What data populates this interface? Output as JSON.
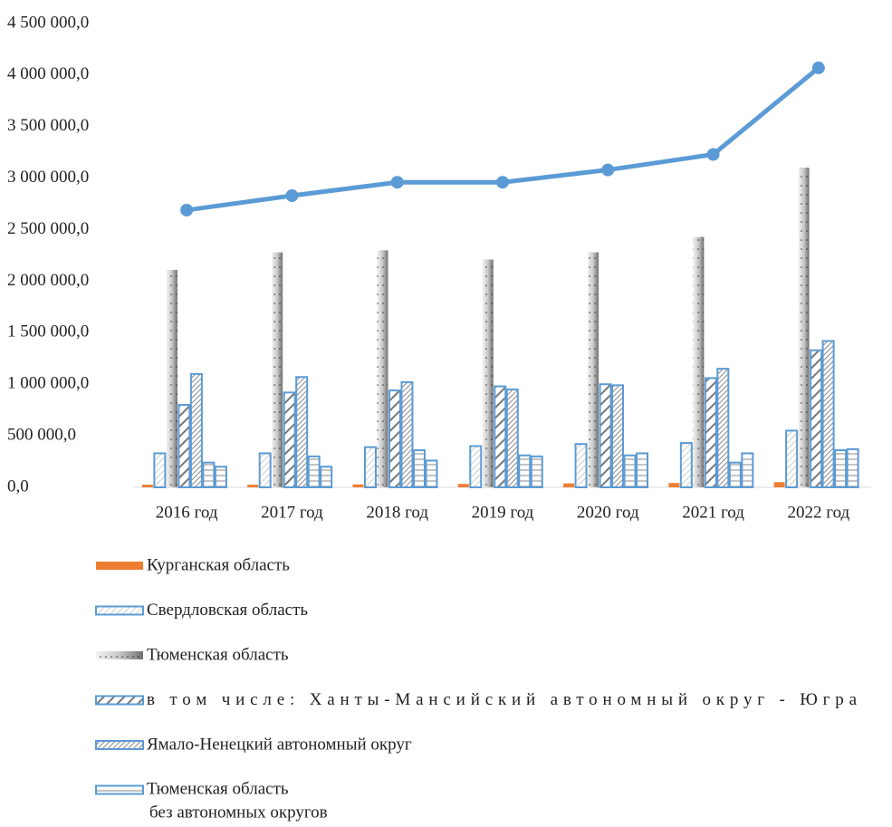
{
  "chart_data": {
    "type": "bar",
    "categories": [
      "2016 год",
      "2017 год",
      "2018 год",
      "2019 год",
      "2020 год",
      "2021 год",
      "2022 год"
    ],
    "ylim": [
      0,
      4500000
    ],
    "yticks": [
      {
        "value": 0,
        "label": "0,0"
      },
      {
        "value": 500000,
        "label": "500 000,0"
      },
      {
        "value": 1000000,
        "label": "1 000 000,0"
      },
      {
        "value": 1500000,
        "label": "1 500 000,0"
      },
      {
        "value": 2000000,
        "label": "2 000 000,0"
      },
      {
        "value": 2500000,
        "label": "2 500 000,0"
      },
      {
        "value": 3000000,
        "label": "3 000 000,0"
      },
      {
        "value": 3500000,
        "label": "3 500 000,0"
      },
      {
        "value": 4000000,
        "label": "4 000 000,0"
      },
      {
        "value": 4500000,
        "label": "4 500 000,0"
      }
    ],
    "grid": false,
    "series": [
      {
        "name": "Курганская область",
        "color": "#ed7d31",
        "pattern": "solid",
        "values": [
          25000,
          25000,
          28000,
          33000,
          38000,
          42000,
          50000
        ]
      },
      {
        "name": "Свердловская область",
        "color": "#5b9bd5",
        "pattern": "light-diagonal",
        "values": [
          330000,
          330000,
          390000,
          400000,
          420000,
          430000,
          550000
        ]
      },
      {
        "name": "Тюменская область",
        "color": "#8c8c8c",
        "pattern": "dotted-gradient",
        "values": [
          2110000,
          2280000,
          2300000,
          2210000,
          2280000,
          2430000,
          3100000
        ]
      },
      {
        "name": "в том числе:                  Ханты-Мансийский        автономный округ - Югра",
        "color": "#5b9bd5",
        "pattern": "wide-diagonal",
        "values": [
          800000,
          920000,
          940000,
          980000,
          1000000,
          1060000,
          1330000
        ]
      },
      {
        "name": "Ямало-Ненецкий автономный округ",
        "color": "#5b9bd5",
        "pattern": "dense-diagonal",
        "values": [
          1100000,
          1070000,
          1020000,
          950000,
          990000,
          1150000,
          1420000
        ]
      },
      {
        "name": "Тюменская область\nбез автономных округов",
        "color": "#5b9bd5",
        "pattern": "horizontal",
        "values": [
          240000,
          300000,
          360000,
          310000,
          310000,
          240000,
          360000
        ]
      },
      {
        "color": "#5b9bd5",
        "pattern": "horizontal",
        "values": [
          200000,
          200000,
          260000,
          300000,
          330000,
          330000,
          370000
        ]
      },
      {
        "type": "line",
        "color": "#5b9bd5",
        "values": [
          2690000,
          2830000,
          2960000,
          2960000,
          3080000,
          3230000,
          4070000
        ]
      }
    ]
  }
}
